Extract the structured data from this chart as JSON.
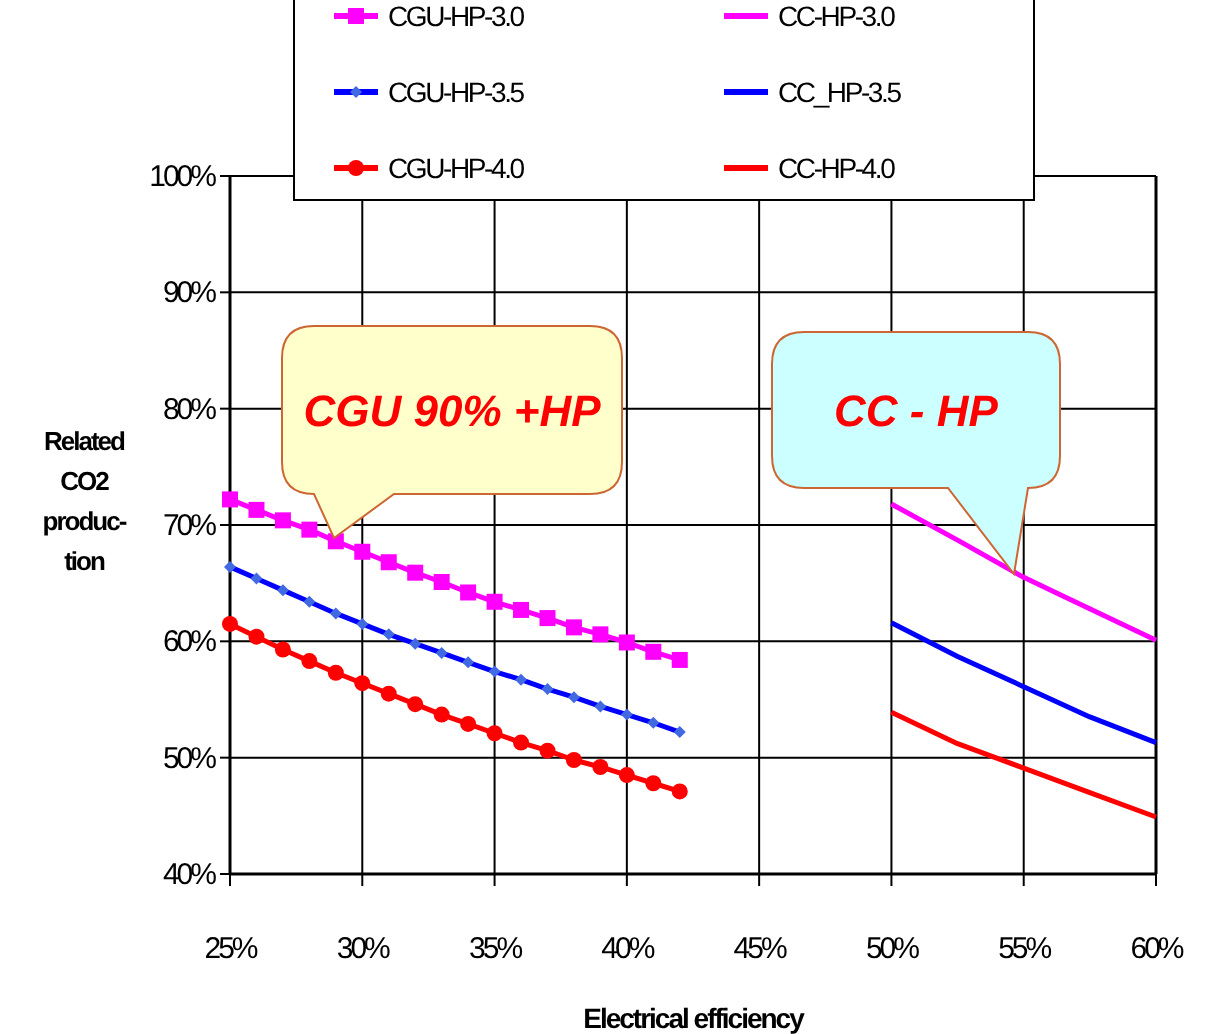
{
  "chart_data": {
    "type": "line",
    "xlabel": "Electrical efficiency",
    "ylabel": "Related\nCO2\nproduc-\ntion",
    "xlim": [
      25,
      60
    ],
    "ylim": [
      40,
      100
    ],
    "xticks": [
      {
        "value": 25,
        "label": "25%"
      },
      {
        "value": 30,
        "label": "30%"
      },
      {
        "value": 35,
        "label": "35%"
      },
      {
        "value": 40,
        "label": "40%"
      },
      {
        "value": 45,
        "label": "45%"
      },
      {
        "value": 50,
        "label": "50%"
      },
      {
        "value": 55,
        "label": "55%"
      },
      {
        "value": 60,
        "label": "60%"
      }
    ],
    "yticks": [
      {
        "value": 40,
        "label": "40%"
      },
      {
        "value": 50,
        "label": "50%"
      },
      {
        "value": 60,
        "label": "60%"
      },
      {
        "value": 70,
        "label": "70%"
      },
      {
        "value": 80,
        "label": "80%"
      },
      {
        "value": 90,
        "label": "90%"
      },
      {
        "value": 100,
        "label": "100%"
      }
    ],
    "grid": true,
    "legend": "top",
    "series": [
      {
        "name": "CGU-HP-3.0",
        "color": "#ff00ff",
        "marker": "square",
        "x": [
          25,
          26,
          27,
          28,
          29,
          30,
          31,
          32,
          33,
          34,
          35,
          36,
          37,
          38,
          39,
          40,
          41,
          42
        ],
        "values": [
          72.2,
          71.3,
          70.4,
          69.6,
          68.6,
          67.7,
          66.8,
          65.9,
          65.1,
          64.2,
          63.4,
          62.7,
          62.0,
          61.2,
          60.6,
          59.9,
          59.1,
          58.4
        ]
      },
      {
        "name": "CC-HP-3.0",
        "color": "#ff00ff",
        "marker": "none",
        "x": [
          50,
          52.5,
          55,
          56.3,
          60
        ],
        "values": [
          71.8,
          68.7,
          65.5,
          64.1,
          60.1
        ]
      },
      {
        "name": "CGU-HP-3.5",
        "color": "#0000ff",
        "marker": "diamond",
        "x": [
          25,
          26,
          27,
          28,
          29,
          30,
          31,
          32,
          33,
          34,
          35,
          36,
          37,
          38,
          39,
          40,
          41,
          42
        ],
        "values": [
          66.4,
          65.4,
          64.4,
          63.4,
          62.4,
          61.5,
          60.6,
          59.8,
          59.0,
          58.2,
          57.4,
          56.7,
          55.9,
          55.2,
          54.4,
          53.7,
          53.0,
          52.2
        ]
      },
      {
        "name": "CC_HP-3.5",
        "color": "#0000ff",
        "marker": "none",
        "x": [
          50,
          52.5,
          55,
          57.5,
          60
        ],
        "values": [
          61.6,
          58.7,
          56.1,
          53.5,
          51.3
        ]
      },
      {
        "name": "CGU-HP-4.0",
        "color": "#ff0000",
        "marker": "circle",
        "x": [
          25,
          26,
          27,
          28,
          29,
          30,
          31,
          32,
          33,
          34,
          35,
          36,
          37,
          38,
          39,
          40,
          41,
          42
        ],
        "values": [
          61.5,
          60.4,
          59.3,
          58.3,
          57.3,
          56.4,
          55.5,
          54.6,
          53.7,
          52.9,
          52.1,
          51.3,
          50.6,
          49.8,
          49.2,
          48.5,
          47.8,
          47.1
        ]
      },
      {
        "name": "CC-HP-4.0",
        "color": "#ff0000",
        "marker": "none",
        "x": [
          50,
          52.5,
          55,
          57.5,
          60
        ],
        "values": [
          53.9,
          51.2,
          49.1,
          47.0,
          44.9
        ]
      }
    ],
    "annotations": [
      "CGU 90% +HP",
      "CC - HP"
    ]
  }
}
